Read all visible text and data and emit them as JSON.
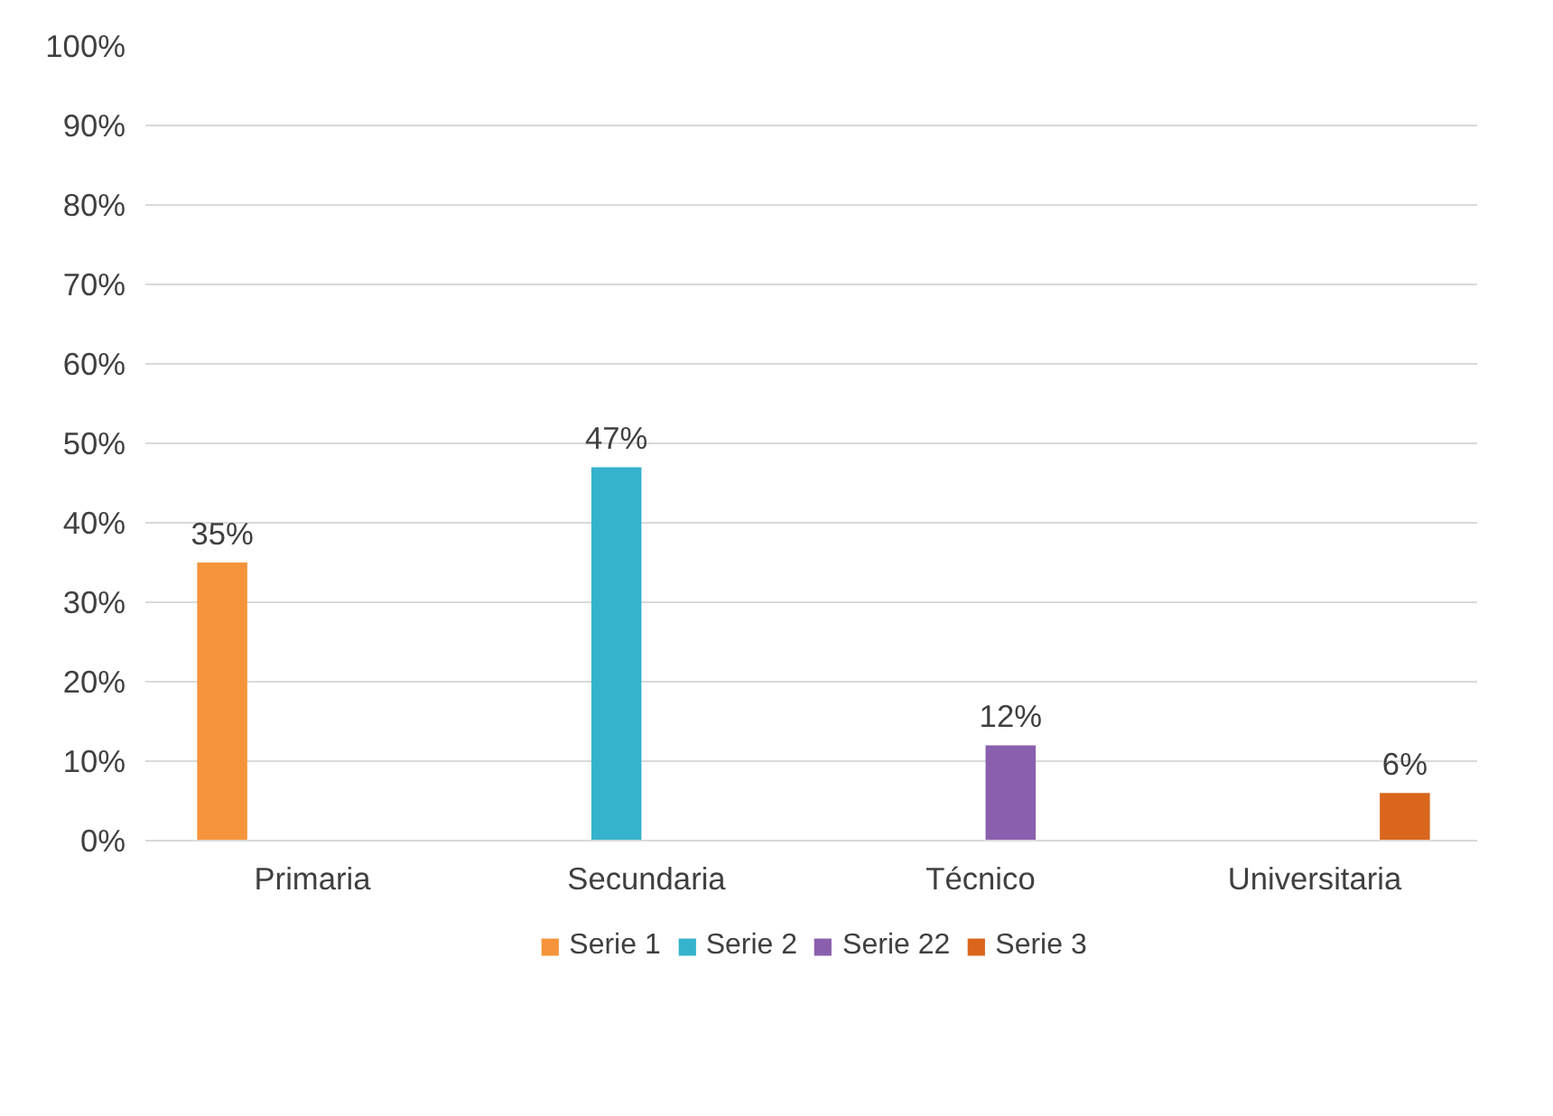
{
  "chart_data": {
    "type": "bar",
    "categories": [
      "Primaria",
      "Secundaria",
      "Técnico",
      "Universitaria"
    ],
    "series": [
      {
        "name": "Serie 1",
        "color": "#f5943a",
        "values": [
          35,
          null,
          null,
          null
        ],
        "value_labels": [
          "35%",
          null,
          null,
          null
        ]
      },
      {
        "name": "Serie 2",
        "color": "#35b3cc",
        "values": [
          null,
          47,
          null,
          null
        ],
        "value_labels": [
          null,
          "47%",
          null,
          null
        ]
      },
      {
        "name": "Serie 22",
        "color": "#8a5fae",
        "values": [
          null,
          null,
          12,
          null
        ],
        "value_labels": [
          null,
          null,
          "12%",
          null
        ]
      },
      {
        "name": "Serie 3",
        "color": "#d9661c",
        "values": [
          null,
          null,
          null,
          6
        ],
        "value_labels": [
          null,
          null,
          null,
          "6%"
        ]
      }
    ],
    "ylim": [
      0,
      100
    ],
    "yticks": [
      {
        "value": 0,
        "label": "0%"
      },
      {
        "value": 10,
        "label": "10%"
      },
      {
        "value": 20,
        "label": "20%"
      },
      {
        "value": 30,
        "label": "30%"
      },
      {
        "value": 40,
        "label": "40%"
      },
      {
        "value": 50,
        "label": "50%"
      },
      {
        "value": 60,
        "label": "60%"
      },
      {
        "value": 70,
        "label": "70%"
      },
      {
        "value": 80,
        "label": "80%"
      },
      {
        "value": 90,
        "label": "90%"
      },
      {
        "value": 100,
        "label": "100%"
      }
    ],
    "grid": "y",
    "legend": "bottom"
  }
}
